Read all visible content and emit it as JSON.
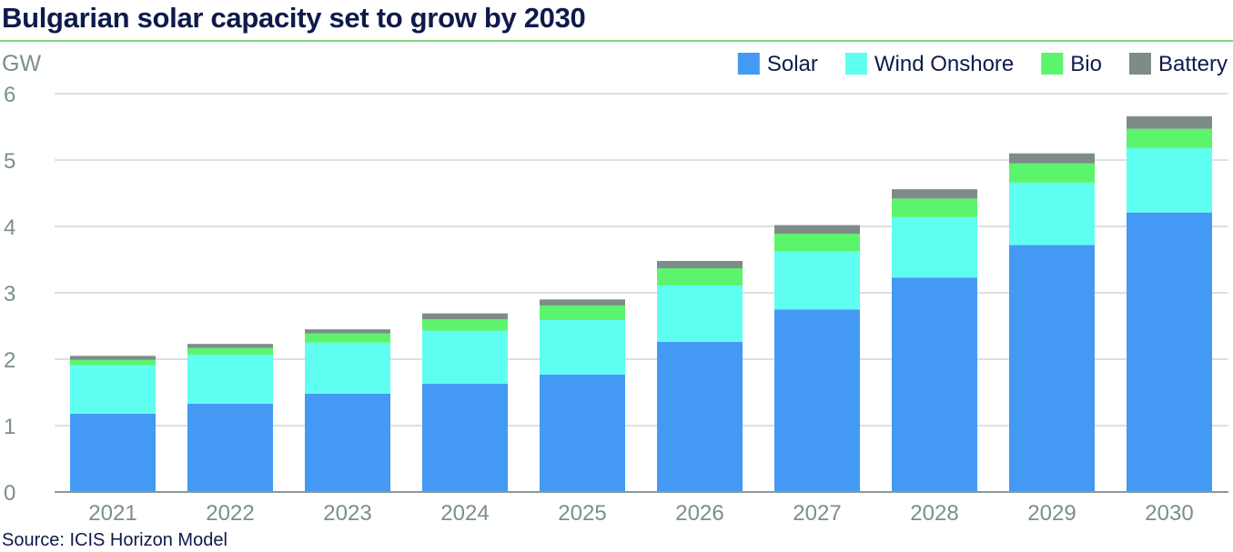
{
  "title": "Bulgarian solar capacity set to grow by 2030",
  "source": "Source: ICIS Horizon Model",
  "chart_data": {
    "type": "bar",
    "stacked": true,
    "title": "Bulgarian solar capacity set to grow by 2030",
    "ylabel": "GW",
    "xlabel": "",
    "ylim": [
      0,
      6
    ],
    "yticks": [
      0,
      1,
      2,
      3,
      4,
      5,
      6
    ],
    "grid": true,
    "legend": "top-right",
    "categories": [
      "2021",
      "2022",
      "2023",
      "2024",
      "2025",
      "2026",
      "2027",
      "2028",
      "2029",
      "2030"
    ],
    "series": [
      {
        "name": "Solar",
        "color": "#4499f5",
        "values": [
          1.18,
          1.33,
          1.48,
          1.63,
          1.77,
          2.26,
          2.75,
          3.23,
          3.72,
          4.21
        ]
      },
      {
        "name": "Wind Onshore",
        "color": "#5efff0",
        "values": [
          0.73,
          0.74,
          0.77,
          0.8,
          0.82,
          0.85,
          0.88,
          0.91,
          0.94,
          0.97
        ]
      },
      {
        "name": "Bio",
        "color": "#5cf46c",
        "values": [
          0.08,
          0.1,
          0.14,
          0.17,
          0.22,
          0.26,
          0.26,
          0.28,
          0.29,
          0.29
        ]
      },
      {
        "name": "Battery",
        "color": "#7d8c88",
        "values": [
          0.06,
          0.06,
          0.06,
          0.09,
          0.09,
          0.11,
          0.13,
          0.14,
          0.15,
          0.19
        ]
      }
    ]
  }
}
